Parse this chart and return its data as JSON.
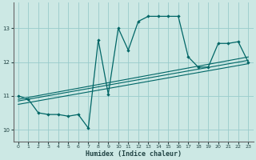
{
  "xlabel": "Humidex (Indice chaleur)",
  "background_color": "#cce8e4",
  "grid_color": "#99cccc",
  "line_color": "#006666",
  "xlim": [
    -0.5,
    23.5
  ],
  "ylim": [
    9.65,
    13.75
  ],
  "yticks": [
    10,
    11,
    12,
    13
  ],
  "xticks": [
    0,
    1,
    2,
    3,
    4,
    5,
    6,
    7,
    8,
    9,
    10,
    11,
    12,
    13,
    14,
    15,
    16,
    17,
    18,
    19,
    20,
    21,
    22,
    23
  ],
  "main_series_x": [
    0,
    1,
    2,
    3,
    4,
    5,
    6,
    7,
    8,
    9,
    10,
    11,
    12,
    13,
    14,
    15,
    16,
    17,
    18,
    19,
    20,
    21,
    22,
    23
  ],
  "main_series_y": [
    11.0,
    10.9,
    10.5,
    10.45,
    10.45,
    10.4,
    10.45,
    10.05,
    12.65,
    11.05,
    13.0,
    12.35,
    13.2,
    13.35,
    13.35,
    13.35,
    13.35,
    12.15,
    11.85,
    11.85,
    12.55,
    12.55,
    12.6,
    12.0
  ],
  "trend_lines": [
    {
      "x": [
        0,
        23
      ],
      "y": [
        10.75,
        11.95
      ]
    },
    {
      "x": [
        0,
        23
      ],
      "y": [
        10.85,
        12.05
      ]
    },
    {
      "x": [
        0,
        23
      ],
      "y": [
        10.9,
        12.15
      ]
    }
  ]
}
